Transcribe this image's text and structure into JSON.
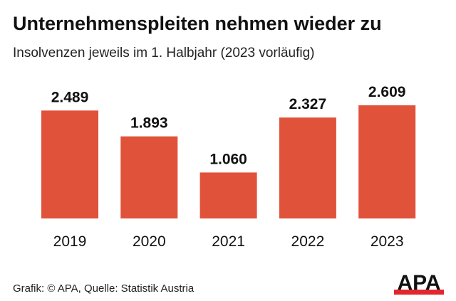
{
  "title": "Unternehmenspleiten nehmen wieder zu",
  "subtitle": "Insolvenzen jeweils im 1. Halbjahr (2023 vorläufig)",
  "source": "Grafik: © APA, Quelle: Statistik Austria",
  "logo_text": "APA",
  "colors": {
    "bar": "#e0523a",
    "logo_red": "#e3262e",
    "text": "#111111"
  },
  "chart_data": {
    "type": "bar",
    "categories": [
      "2019",
      "2020",
      "2021",
      "2022",
      "2023"
    ],
    "values": [
      2489,
      1893,
      1060,
      2327,
      2609
    ],
    "value_labels": [
      "2.489",
      "1.893",
      "1.060",
      "2.327",
      "2.609"
    ],
    "title": "Unternehmenspleiten nehmen wieder zu",
    "subtitle": "Insolvenzen jeweils im 1. Halbjahr (2023 vorläufig)",
    "xlabel": "",
    "ylabel": "",
    "ylim": [
      0,
      2609
    ],
    "grid": false
  }
}
